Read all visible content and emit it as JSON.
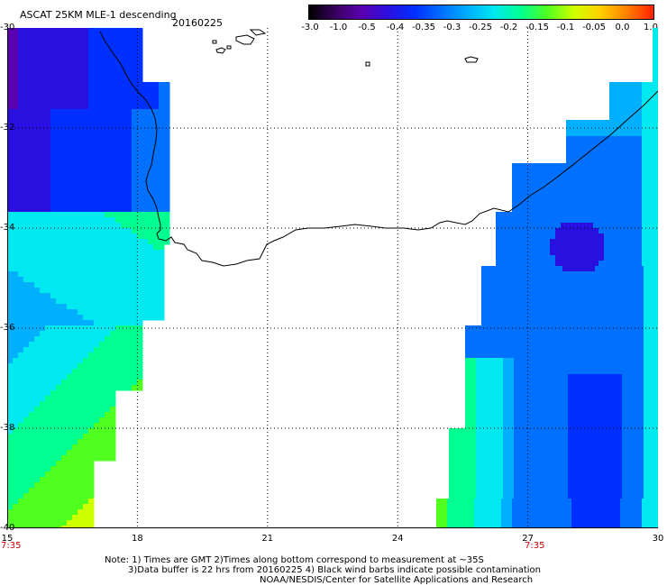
{
  "header": {
    "title": "ASCAT 25KM MLE-1 descending",
    "date": "20160225"
  },
  "colorbar": {
    "labels": [
      "-3.0",
      "-1.0",
      "-0.5",
      "-0.4",
      "-0.35",
      "-0.3",
      "-0.25",
      "-0.2",
      "-0.15",
      "-0.1",
      "-0.05",
      "0.0",
      "1.0"
    ],
    "colors": [
      "#000000",
      "#3a0060",
      "#5a00b0",
      "#2a10e0",
      "#0030ff",
      "#0070ff",
      "#00b0ff",
      "#00e8f0",
      "#00ff90",
      "#50ff20",
      "#d0ff00",
      "#ffd000",
      "#ff8000",
      "#ff2000"
    ]
  },
  "map": {
    "lon_range": [
      15,
      30
    ],
    "lat_range": [
      -40,
      -30
    ],
    "lat_labels": [
      "-30",
      "-32",
      "-34",
      "-36",
      "-38",
      "-40"
    ],
    "lon_labels": [
      "15",
      "18",
      "21",
      "24",
      "27",
      "30"
    ],
    "time_labels": [
      "7:35",
      "7:35"
    ],
    "grid": "dotted"
  },
  "notes": {
    "line1": "Note: 1) Times are GMT 2)Times along bottom correspond to measurement at ~35S",
    "line2": "3)Data buffer is 22 hrs from 20160225 4) Black wind barbs indicate possible contamination",
    "line3": "NOAA/NESDIS/Center for Satellite Applications and Research"
  }
}
